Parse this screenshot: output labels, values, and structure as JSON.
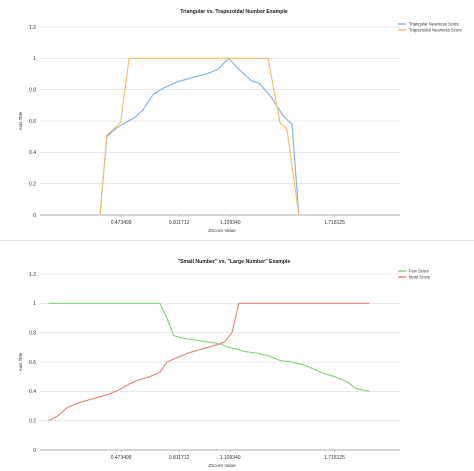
{
  "chart_data": [
    {
      "type": "line",
      "title": "Triangular vs. Trapezoidal Number Example",
      "xlabel": "ZScore Value",
      "ylabel": "Axis Title",
      "xlim": [
        0,
        2.1
      ],
      "ylim": [
        0,
        1.2
      ],
      "yticks": [
        "0",
        "0.2",
        "0.4",
        "0.6",
        "0.8",
        "1",
        "1.2"
      ],
      "xticks": [
        {
          "value": 0.473499,
          "label": "0.473499"
        },
        {
          "value": 0.811712,
          "label": "0.811712"
        },
        {
          "value": 1.10934,
          "label": "1.109340"
        },
        {
          "value": 1.718125,
          "label": "1.718125"
        }
      ],
      "grid": true,
      "legend_position": "top-right",
      "series": [
        {
          "name": "Triangular Nearness Score",
          "color": "#7fb0dc",
          "x": [
            0.35,
            0.39,
            0.44,
            0.5,
            0.55,
            0.6,
            0.66,
            0.72,
            0.8,
            0.9,
            0.97,
            1.04,
            1.1,
            1.16,
            1.23,
            1.28,
            1.35,
            1.42,
            1.47,
            1.51
          ],
          "y": [
            0.0,
            0.5,
            0.55,
            0.59,
            0.62,
            0.67,
            0.77,
            0.81,
            0.85,
            0.88,
            0.9,
            0.93,
            1.0,
            0.93,
            0.86,
            0.84,
            0.75,
            0.63,
            0.58,
            0.0
          ]
        },
        {
          "name": "Trapezoidal Nearness Score",
          "color": "#f0c06a",
          "x": [
            0.35,
            0.39,
            0.47,
            0.52,
            1.33,
            1.4,
            1.44,
            1.51
          ],
          "y": [
            0.0,
            0.51,
            0.59,
            1.0,
            1.0,
            0.59,
            0.55,
            0.0
          ]
        }
      ]
    },
    {
      "type": "line",
      "title": "\"Small Number\" vs. \"Large Number\" Example",
      "xlabel": "ZScore Value",
      "ylabel": "Axis Title",
      "xlim": [
        0,
        2.1
      ],
      "ylim": [
        0,
        1.2
      ],
      "yticks": [
        "0",
        "0.2",
        "0.4",
        "0.6",
        "0.8",
        "1",
        "1.2"
      ],
      "xticks": [
        {
          "value": 0.473499,
          "label": "0.473499"
        },
        {
          "value": 0.811712,
          "label": "0.811712"
        },
        {
          "value": 1.10934,
          "label": "1.109340"
        },
        {
          "value": 1.718125,
          "label": "1.718125"
        }
      ],
      "grid": true,
      "legend_position": "top-right",
      "series": [
        {
          "name": "Few Score",
          "color": "#86cf7e",
          "x": [
            0.05,
            0.4,
            0.7,
            0.74,
            0.78,
            0.84,
            0.9,
            0.96,
            1.02,
            1.06,
            1.1,
            1.14,
            1.2,
            1.27,
            1.34,
            1.4,
            1.47,
            1.54,
            1.6,
            1.66,
            1.72,
            1.8,
            1.84,
            1.92
          ],
          "y": [
            1.0,
            1.0,
            1.0,
            0.9,
            0.78,
            0.76,
            0.75,
            0.74,
            0.73,
            0.72,
            0.7,
            0.69,
            0.67,
            0.66,
            0.64,
            0.61,
            0.6,
            0.58,
            0.55,
            0.52,
            0.5,
            0.46,
            0.42,
            0.4
          ]
        },
        {
          "name": "Most Score",
          "color": "#e5817b",
          "x": [
            0.05,
            0.1,
            0.16,
            0.22,
            0.28,
            0.34,
            0.4,
            0.46,
            0.52,
            0.58,
            0.64,
            0.7,
            0.74,
            0.8,
            0.86,
            0.92,
            0.98,
            1.04,
            1.08,
            1.12,
            1.16,
            1.2,
            1.4,
            1.92
          ],
          "y": [
            0.2,
            0.23,
            0.29,
            0.32,
            0.34,
            0.36,
            0.38,
            0.41,
            0.45,
            0.48,
            0.5,
            0.53,
            0.6,
            0.63,
            0.66,
            0.68,
            0.7,
            0.72,
            0.74,
            0.8,
            1.0,
            1.0,
            1.0,
            1.0
          ]
        }
      ]
    }
  ]
}
